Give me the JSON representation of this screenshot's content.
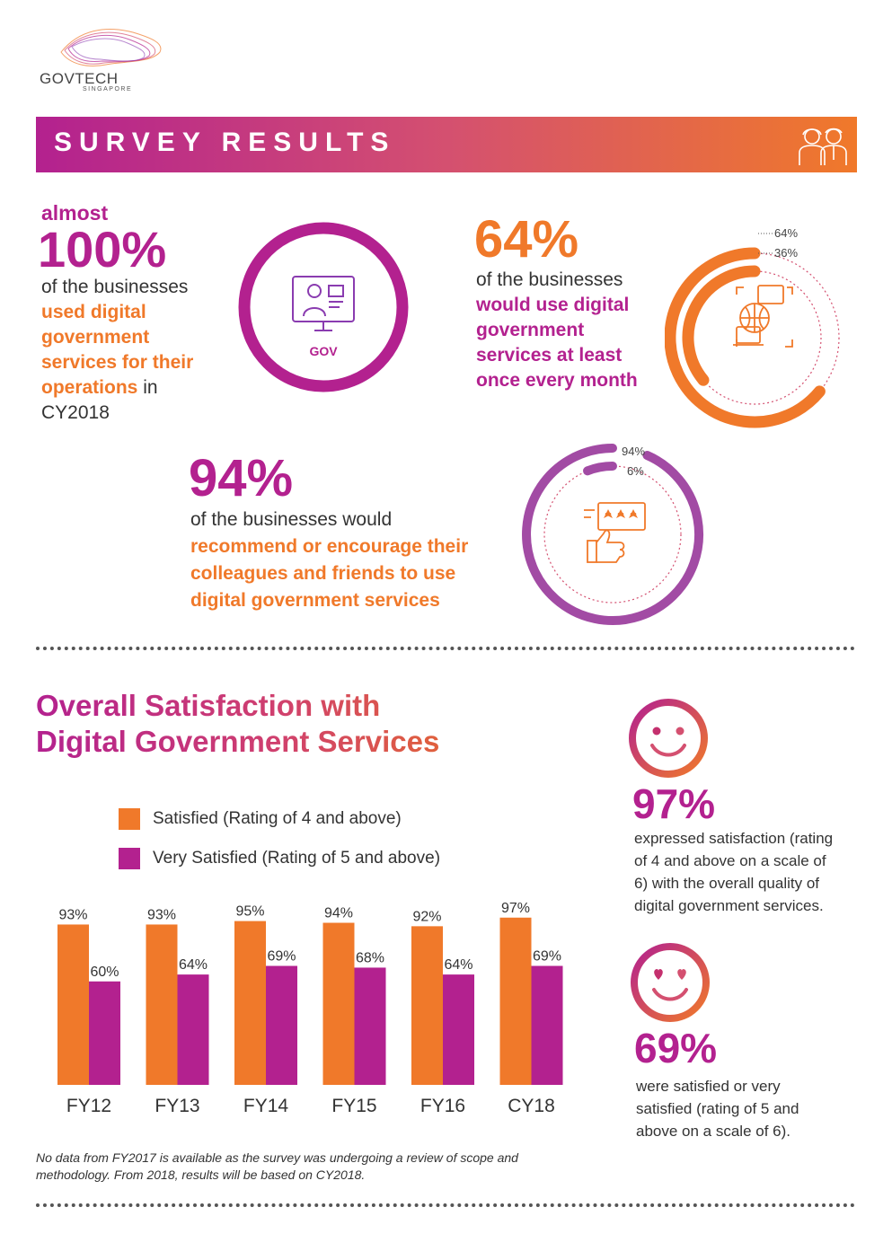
{
  "logo": {
    "word": "GOVTECH",
    "sub": "SINGAPORE"
  },
  "banner": {
    "title": "SURVEY RESULTS",
    "icon": "people-icon"
  },
  "stat1": {
    "prefix": "almost",
    "value": "100%",
    "line1": "of the businesses",
    "hl1": "used digital",
    "hl2": "government",
    "hl3": "services for their",
    "hl4": "operations",
    "tail4": " in",
    "line6": "CY2018",
    "icon_label": "GOV",
    "icon": "gov-computer-icon"
  },
  "stat2": {
    "value": "64%",
    "line1": "of the businesses",
    "hl1": "would use digital",
    "hl2": "government",
    "hl3": "services at least",
    "hl4": "once every month",
    "donut_labels": [
      "64%",
      "36%"
    ],
    "donut_fraction": 0.64,
    "icon": "globe-laptop-icon"
  },
  "stat3": {
    "value": "94%",
    "line1": "of the businesses would",
    "hl1": "recommend or encourage their",
    "hl2": "colleagues and friends to use",
    "hl3": "digital government services",
    "donut_labels": [
      "94%",
      "6%"
    ],
    "donut_fraction": 0.94,
    "icon": "thumbs-up-rating-icon"
  },
  "chart_title": {
    "line1": "Overall Satisfaction with",
    "line2": "Digital Government Services"
  },
  "legend": [
    {
      "label": "Satisfied (Rating of 4 and above)",
      "color": "#F0792A"
    },
    {
      "label": "Very Satisfied (Rating of 5 and above)",
      "color": "#B3218F"
    }
  ],
  "chart_data": {
    "type": "bar",
    "title": "Overall Satisfaction with Digital Government Services",
    "categories": [
      "FY12",
      "FY13",
      "FY14",
      "FY15",
      "FY16",
      "CY18"
    ],
    "series": [
      {
        "name": "Satisfied (Rating of 4 and above)",
        "values": [
          93,
          93,
          95,
          94,
          92,
          97
        ],
        "color": "#F0792A"
      },
      {
        "name": "Very Satisfied (Rating of 5 and above)",
        "values": [
          60,
          64,
          69,
          68,
          64,
          69
        ],
        "color": "#B3218F"
      }
    ],
    "value_labels": [
      [
        "93%",
        "93%",
        "95%",
        "94%",
        "92%",
        "97%"
      ],
      [
        "60%",
        "64%",
        "69%",
        "68%",
        "64%",
        "69%"
      ]
    ],
    "ylim": [
      0,
      100
    ],
    "legend_position": "top-left",
    "grid": false
  },
  "footnote": "No data from FY2017 is available as the survey was undergoing a review of scope and methodology. From 2018, results will be based on CY2018.",
  "side1": {
    "icon": "smiley-face-icon",
    "value": "97%",
    "lines": [
      "expressed satisfaction (rating",
      "of 4 and above on a scale of",
      "6) with the overall quality of",
      "digital government services."
    ]
  },
  "side2": {
    "icon": "heart-eyes-smiley-icon",
    "value": "69%",
    "lines": [
      "were satisfied or very",
      "satisfied (rating of 5 and",
      "above on a scale of 6)."
    ]
  }
}
